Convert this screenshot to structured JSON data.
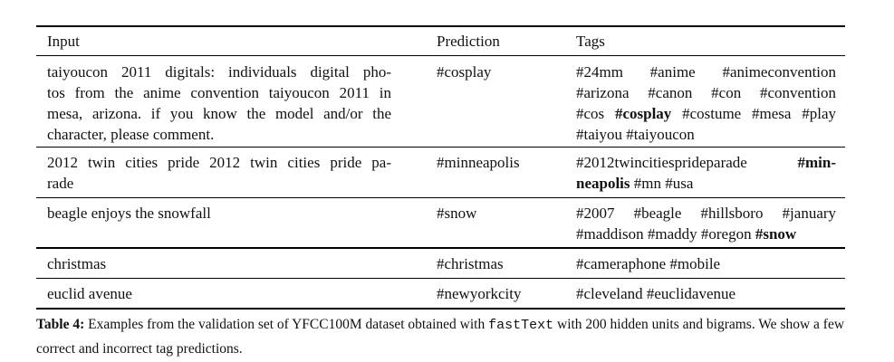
{
  "table": {
    "headers": {
      "input": "Input",
      "prediction": "Prediction",
      "tags": "Tags"
    },
    "rows": [
      {
        "input_lines": [
          "taiyoucon 2011 digitals: individuals digital pho-",
          "tos from the anime convention taiyoucon 2011 in",
          "mesa, arizona. if you know the model and/or the",
          "character, please comment."
        ],
        "prediction": "#cosplay",
        "tag_lines": [
          [
            {
              "t": "#24mm"
            },
            {
              "t": "#anime"
            },
            {
              "t": "#animeconvention"
            }
          ],
          [
            {
              "t": "#arizona"
            },
            {
              "t": "#canon"
            },
            {
              "t": "#con"
            },
            {
              "t": "#convention"
            }
          ],
          [
            {
              "t": "#cos"
            },
            {
              "t": "#cosplay",
              "b": true
            },
            {
              "t": "#costume"
            },
            {
              "t": "#mesa"
            },
            {
              "t": "#play"
            }
          ],
          [
            {
              "t": "#taiyou"
            },
            {
              "t": "#taiyoucon"
            }
          ]
        ]
      },
      {
        "input_lines": [
          "2012 twin cities pride 2012 twin cities pride pa-",
          "rade"
        ],
        "prediction": "#minneapolis",
        "tag_lines": [
          [
            {
              "t": "#2012twincitiesprideparade"
            },
            {
              "t": "#min-",
              "b": true
            }
          ],
          [
            {
              "t": "neapolis",
              "b": true
            },
            {
              "t": "#mn"
            },
            {
              "t": "#usa"
            }
          ]
        ]
      },
      {
        "input_lines": [
          "beagle enjoys the snowfall"
        ],
        "prediction": "#snow",
        "tag_lines": [
          [
            {
              "t": "#2007"
            },
            {
              "t": "#beagle"
            },
            {
              "t": "#hillsboro"
            },
            {
              "t": "#january"
            }
          ],
          [
            {
              "t": "#maddison"
            },
            {
              "t": "#maddy"
            },
            {
              "t": "#oregon"
            },
            {
              "t": "#snow",
              "b": true
            }
          ]
        ]
      },
      {
        "input_lines": [
          "christmas"
        ],
        "prediction": "#christmas",
        "tag_lines": [
          [
            {
              "t": "#cameraphone"
            },
            {
              "t": "#mobile"
            }
          ]
        ]
      },
      {
        "input_lines": [
          "euclid avenue"
        ],
        "prediction": "#newyorkcity",
        "tag_lines": [
          [
            {
              "t": "#cleveland"
            },
            {
              "t": "#euclidavenue"
            }
          ]
        ]
      }
    ]
  },
  "caption": {
    "label": "Table 4:",
    "text_before": " Examples from the validation set of YFCC100M dataset obtained with ",
    "code": "fastText",
    "text_after": " with 200 hidden units and bigrams. We show a few correct and incorrect tag predictions."
  }
}
